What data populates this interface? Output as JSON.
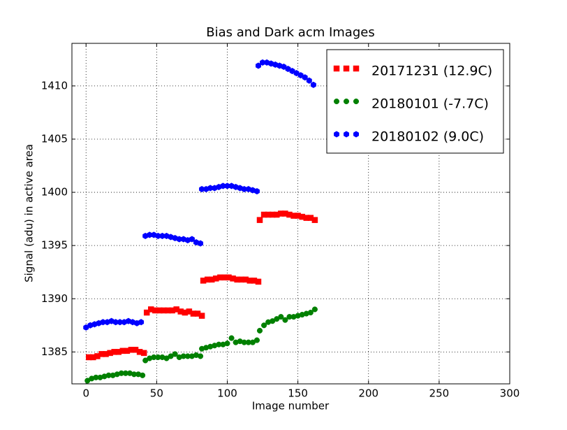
{
  "chart_data": {
    "type": "scatter",
    "title": "Bias and Dark acm Images",
    "xlabel": "Image number",
    "ylabel": "Signal (adu) in active area",
    "xlim": [
      -10,
      300
    ],
    "ylim": [
      1382,
      1414
    ],
    "xticks": [
      0,
      50,
      100,
      150,
      200,
      250,
      300
    ],
    "yticks": [
      1385,
      1390,
      1395,
      1400,
      1405,
      1410
    ],
    "grid": true,
    "legend_position": "upper right",
    "series": [
      {
        "name": "20171231 (12.9C)",
        "color": "#ff0000",
        "marker": "square",
        "x": [
          2,
          5,
          8,
          11,
          14,
          17,
          20,
          23,
          26,
          29,
          32,
          35,
          38,
          41,
          43,
          46,
          49,
          52,
          55,
          58,
          61,
          64,
          67,
          70,
          73,
          76,
          79,
          82,
          83,
          86,
          89,
          92,
          95,
          98,
          101,
          104,
          107,
          110,
          113,
          116,
          119,
          122,
          123,
          126,
          129,
          132,
          135,
          138,
          141,
          144,
          147,
          150,
          153,
          156,
          159,
          162
        ],
        "values": [
          1384.5,
          1384.5,
          1384.6,
          1384.8,
          1384.8,
          1384.9,
          1385.0,
          1385.0,
          1385.1,
          1385.1,
          1385.2,
          1385.2,
          1385.0,
          1384.9,
          1388.7,
          1389.0,
          1388.9,
          1388.9,
          1388.9,
          1388.9,
          1388.9,
          1389.0,
          1388.8,
          1388.7,
          1388.8,
          1388.6,
          1388.6,
          1388.4,
          1391.7,
          1391.8,
          1391.8,
          1391.9,
          1392.0,
          1392.0,
          1392.0,
          1391.9,
          1391.8,
          1391.8,
          1391.8,
          1391.7,
          1391.7,
          1391.6,
          1397.4,
          1397.9,
          1397.9,
          1397.9,
          1397.9,
          1398.0,
          1398.0,
          1397.9,
          1397.8,
          1397.8,
          1397.7,
          1397.6,
          1397.6,
          1397.4
        ]
      },
      {
        "name": "20180101 (-7.7C)",
        "color": "#008000",
        "marker": "circle",
        "x": [
          1,
          4,
          7,
          10,
          13,
          16,
          19,
          22,
          25,
          28,
          31,
          34,
          37,
          40,
          42,
          45,
          48,
          51,
          54,
          57,
          60,
          63,
          66,
          69,
          72,
          75,
          78,
          81,
          82,
          85,
          88,
          91,
          94,
          97,
          100,
          103,
          106,
          109,
          112,
          115,
          118,
          121,
          123,
          126,
          129,
          132,
          135,
          138,
          141,
          144,
          147,
          150,
          153,
          156,
          159,
          162
        ],
        "values": [
          1382.3,
          1382.5,
          1382.6,
          1382.6,
          1382.7,
          1382.8,
          1382.8,
          1382.9,
          1383.0,
          1383.0,
          1383.0,
          1382.9,
          1382.9,
          1382.8,
          1384.2,
          1384.4,
          1384.5,
          1384.5,
          1384.5,
          1384.4,
          1384.6,
          1384.8,
          1384.5,
          1384.6,
          1384.6,
          1384.6,
          1384.7,
          1384.6,
          1385.3,
          1385.4,
          1385.5,
          1385.6,
          1385.7,
          1385.7,
          1385.8,
          1386.3,
          1385.9,
          1386.0,
          1385.9,
          1385.9,
          1385.9,
          1386.1,
          1387.0,
          1387.5,
          1387.8,
          1387.9,
          1388.1,
          1388.3,
          1388.0,
          1388.3,
          1388.3,
          1388.4,
          1388.5,
          1388.6,
          1388.7,
          1389.0
        ]
      },
      {
        "name": "20180102 (9.0C)",
        "color": "#0000ff",
        "marker": "hexagon",
        "x": [
          0,
          3,
          6,
          9,
          12,
          15,
          18,
          21,
          24,
          27,
          30,
          33,
          36,
          39,
          42,
          45,
          48,
          51,
          54,
          57,
          60,
          63,
          66,
          69,
          72,
          75,
          78,
          81,
          82,
          85,
          88,
          91,
          94,
          97,
          100,
          103,
          106,
          109,
          112,
          115,
          118,
          121,
          122,
          125,
          128,
          131,
          134,
          137,
          140,
          143,
          146,
          149,
          152,
          155,
          158,
          161
        ],
        "values": [
          1387.3,
          1387.5,
          1387.6,
          1387.7,
          1387.8,
          1387.8,
          1387.9,
          1387.8,
          1387.8,
          1387.8,
          1387.9,
          1387.8,
          1387.7,
          1387.8,
          1395.9,
          1396.0,
          1396.0,
          1395.9,
          1395.9,
          1395.9,
          1395.8,
          1395.7,
          1395.6,
          1395.6,
          1395.5,
          1395.6,
          1395.3,
          1395.2,
          1400.3,
          1400.3,
          1400.4,
          1400.4,
          1400.5,
          1400.6,
          1400.6,
          1400.6,
          1400.5,
          1400.4,
          1400.3,
          1400.3,
          1400.2,
          1400.1,
          1411.9,
          1412.2,
          1412.2,
          1412.1,
          1412.0,
          1411.9,
          1411.8,
          1411.6,
          1411.4,
          1411.2,
          1411.0,
          1410.8,
          1410.5,
          1410.1
        ]
      }
    ]
  }
}
